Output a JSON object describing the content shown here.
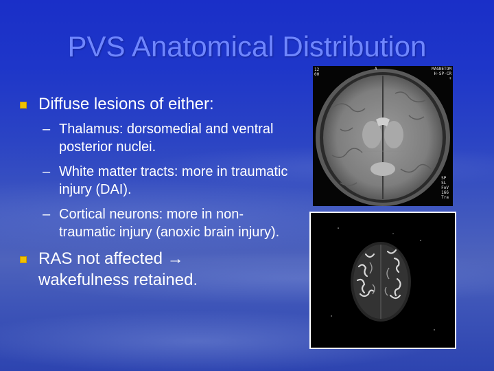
{
  "title": "PVS Anatomical Distribution",
  "bullets": [
    {
      "text": "Diffuse lesions of either:",
      "sub": [
        "Thalamus: dorsomedial and ventral posterior nuclei.",
        "White matter tracts: more in traumatic injury (DAI).",
        "Cortical neurons: more in non-traumatic injury (anoxic brain injury)."
      ]
    },
    {
      "text": "RAS not affected → wakefulness retained."
    }
  ],
  "images": {
    "mri_axial": {
      "top_left": "12\n00",
      "top_center": "A",
      "top_right": "MAGNETOM\nH-SP-CR\n+",
      "bottom_right": "SP\nSL\nFoV\n166\nTra"
    },
    "mri_dwi": {}
  },
  "colors": {
    "title": "#6f86ff",
    "bullet_marker": "#f0c200",
    "text": "#ffffff"
  }
}
